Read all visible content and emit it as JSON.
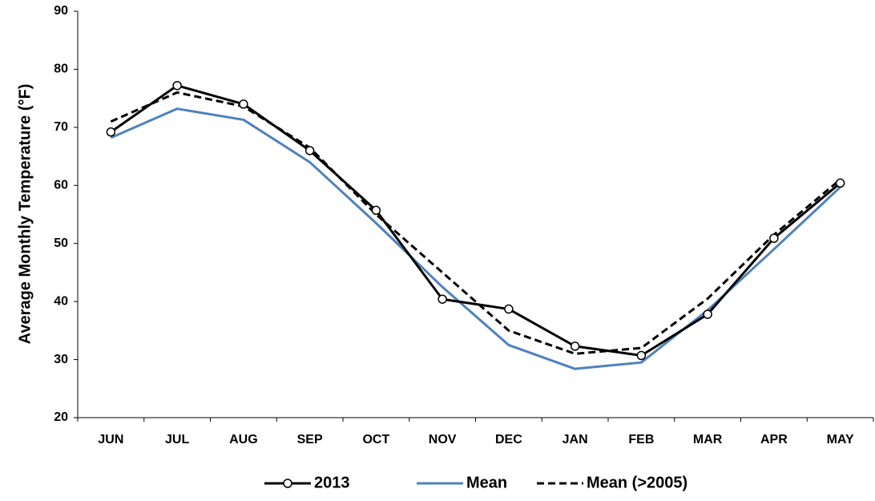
{
  "chart_data": {
    "type": "line",
    "y_label": "Average Monthly Temperature (°F)",
    "categories": [
      "JUN",
      "JUL",
      "AUG",
      "SEP",
      "OCT",
      "NOV",
      "DEC",
      "JAN",
      "FEB",
      "MAR",
      "APR",
      "MAY"
    ],
    "series": [
      {
        "name": "2013",
        "color": "#000000",
        "line_style": "solid",
        "marker": "circle",
        "values": [
          69.2,
          77.2,
          74,
          66,
          55.7,
          40.4,
          38.7,
          32.3,
          30.7,
          37.8,
          50.9,
          60.4
        ]
      },
      {
        "name": "Mean",
        "color": "#4f81bd",
        "line_style": "solid",
        "marker": "none",
        "values": [
          68.2,
          73.2,
          71.3,
          64,
          53.5,
          42.5,
          32.5,
          28.4,
          29.5,
          38.5,
          49,
          59.7
        ]
      },
      {
        "name": "Mean (>2005)",
        "color": "#000000",
        "line_style": "dashed",
        "marker": "none",
        "values": [
          71,
          76,
          73.6,
          66.5,
          55,
          45,
          35,
          31,
          32,
          40.5,
          51.5,
          61
        ]
      }
    ],
    "ylim": [
      20,
      90
    ],
    "yticks": [
      20,
      30,
      40,
      50,
      60,
      70,
      80,
      90
    ],
    "grid": false,
    "legend": "bottom"
  }
}
